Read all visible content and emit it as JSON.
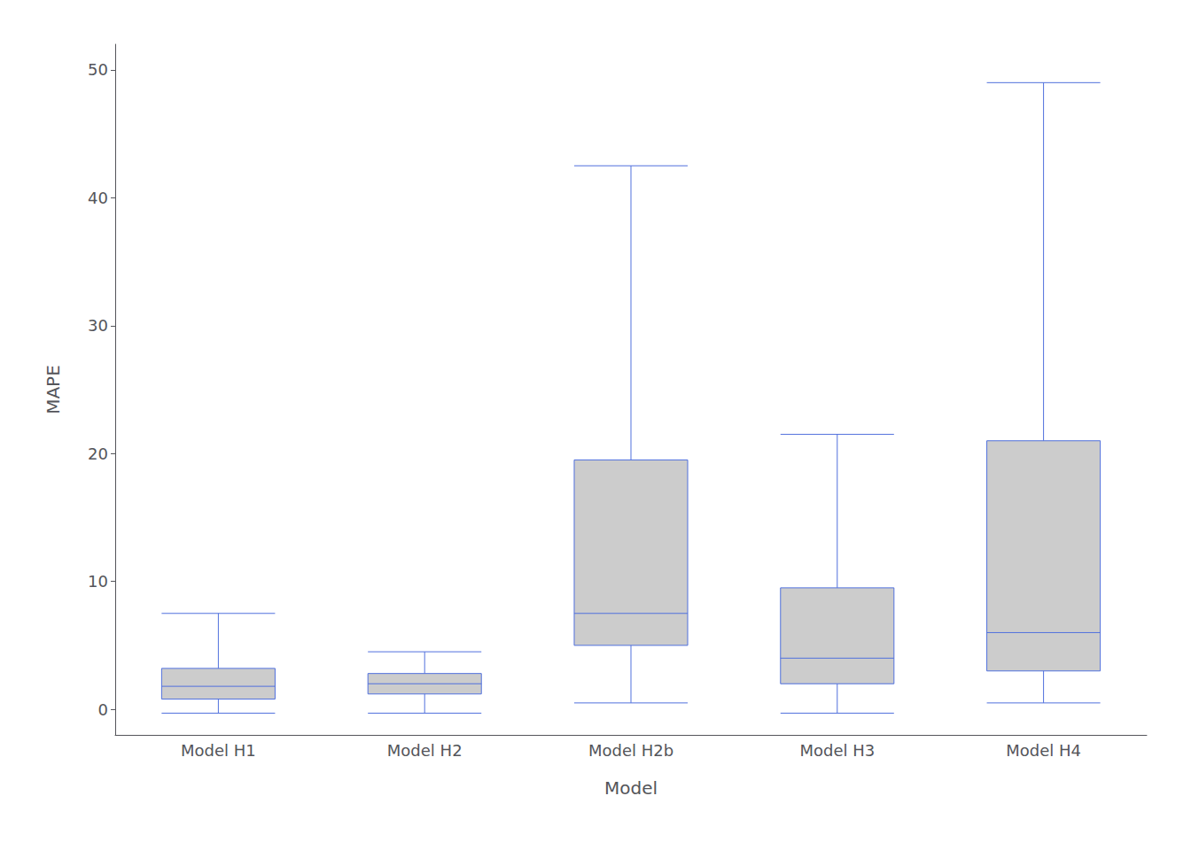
{
  "chart_data": {
    "type": "boxplot",
    "categories": [
      "Model H1",
      "Model H2",
      "Model H2b",
      "Model H3",
      "Model H4"
    ],
    "values": [
      [
        -0.3,
        0.8,
        1.8,
        3.2,
        7.5
      ],
      [
        -0.3,
        1.2,
        2.0,
        2.8,
        4.5
      ],
      [
        0.5,
        5.0,
        7.5,
        19.5,
        42.5
      ],
      [
        -0.3,
        2.0,
        4.0,
        9.5,
        21.5
      ],
      [
        0.5,
        3.0,
        6.0,
        21.0,
        49.0
      ]
    ],
    "xlabel": "Model",
    "ylabel": "MAPE",
    "ylim": [
      -2,
      52
    ],
    "yticks": [
      0,
      10,
      20,
      30,
      40,
      50
    ],
    "color": "#cccccc",
    "grid": false
  }
}
